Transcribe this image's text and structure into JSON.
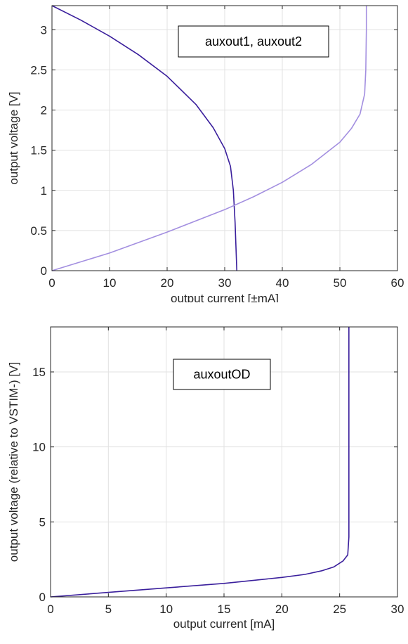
{
  "chart_data": [
    {
      "type": "line",
      "xlabel": "output current [±mA]",
      "ylabel": "output voltage [V]",
      "xlim": [
        0,
        60
      ],
      "ylim": [
        0,
        3.3
      ],
      "xticks": [
        0,
        10,
        20,
        30,
        40,
        50,
        60
      ],
      "yticks": [
        0,
        0.5,
        1,
        1.5,
        2,
        2.5,
        3
      ],
      "grid": true,
      "annotation": "auxout1, auxout2",
      "series": [
        {
          "color": "#3a1f9c",
          "points": [
            [
              0,
              3.3
            ],
            [
              5,
              3.12
            ],
            [
              10,
              2.92
            ],
            [
              15,
              2.69
            ],
            [
              20,
              2.42
            ],
            [
              25,
              2.07
            ],
            [
              28,
              1.78
            ],
            [
              30,
              1.52
            ],
            [
              31,
              1.3
            ],
            [
              31.5,
              1.0
            ],
            [
              31.8,
              0.6
            ],
            [
              32,
              0.2
            ],
            [
              32.1,
              0
            ]
          ]
        },
        {
          "color": "#a38fe0",
          "points": [
            [
              0,
              0
            ],
            [
              10,
              0.22
            ],
            [
              20,
              0.48
            ],
            [
              30,
              0.76
            ],
            [
              35,
              0.92
            ],
            [
              40,
              1.1
            ],
            [
              45,
              1.32
            ],
            [
              50,
              1.6
            ],
            [
              52,
              1.77
            ],
            [
              53.5,
              1.95
            ],
            [
              54.3,
              2.2
            ],
            [
              54.5,
              2.5
            ],
            [
              54.6,
              3.0
            ],
            [
              54.6,
              3.3
            ]
          ]
        }
      ]
    },
    {
      "type": "line",
      "xlabel": "output current [mA]",
      "ylabel": "output voltage (relative to VSTIM-) [V]",
      "xlim": [
        0,
        30
      ],
      "ylim": [
        0,
        18
      ],
      "xticks": [
        0,
        5,
        10,
        15,
        20,
        25,
        30
      ],
      "yticks": [
        0,
        5,
        10,
        15
      ],
      "grid": true,
      "annotation": "auxoutOD",
      "series": [
        {
          "color": "#3a1f9c",
          "points": [
            [
              0,
              0
            ],
            [
              5,
              0.3
            ],
            [
              10,
              0.6
            ],
            [
              15,
              0.9
            ],
            [
              20,
              1.3
            ],
            [
              22,
              1.5
            ],
            [
              23.5,
              1.75
            ],
            [
              24.5,
              2.0
            ],
            [
              25.3,
              2.4
            ],
            [
              25.7,
              2.8
            ],
            [
              25.8,
              4.0
            ],
            [
              25.8,
              10
            ],
            [
              25.8,
              18
            ]
          ]
        }
      ]
    }
  ]
}
